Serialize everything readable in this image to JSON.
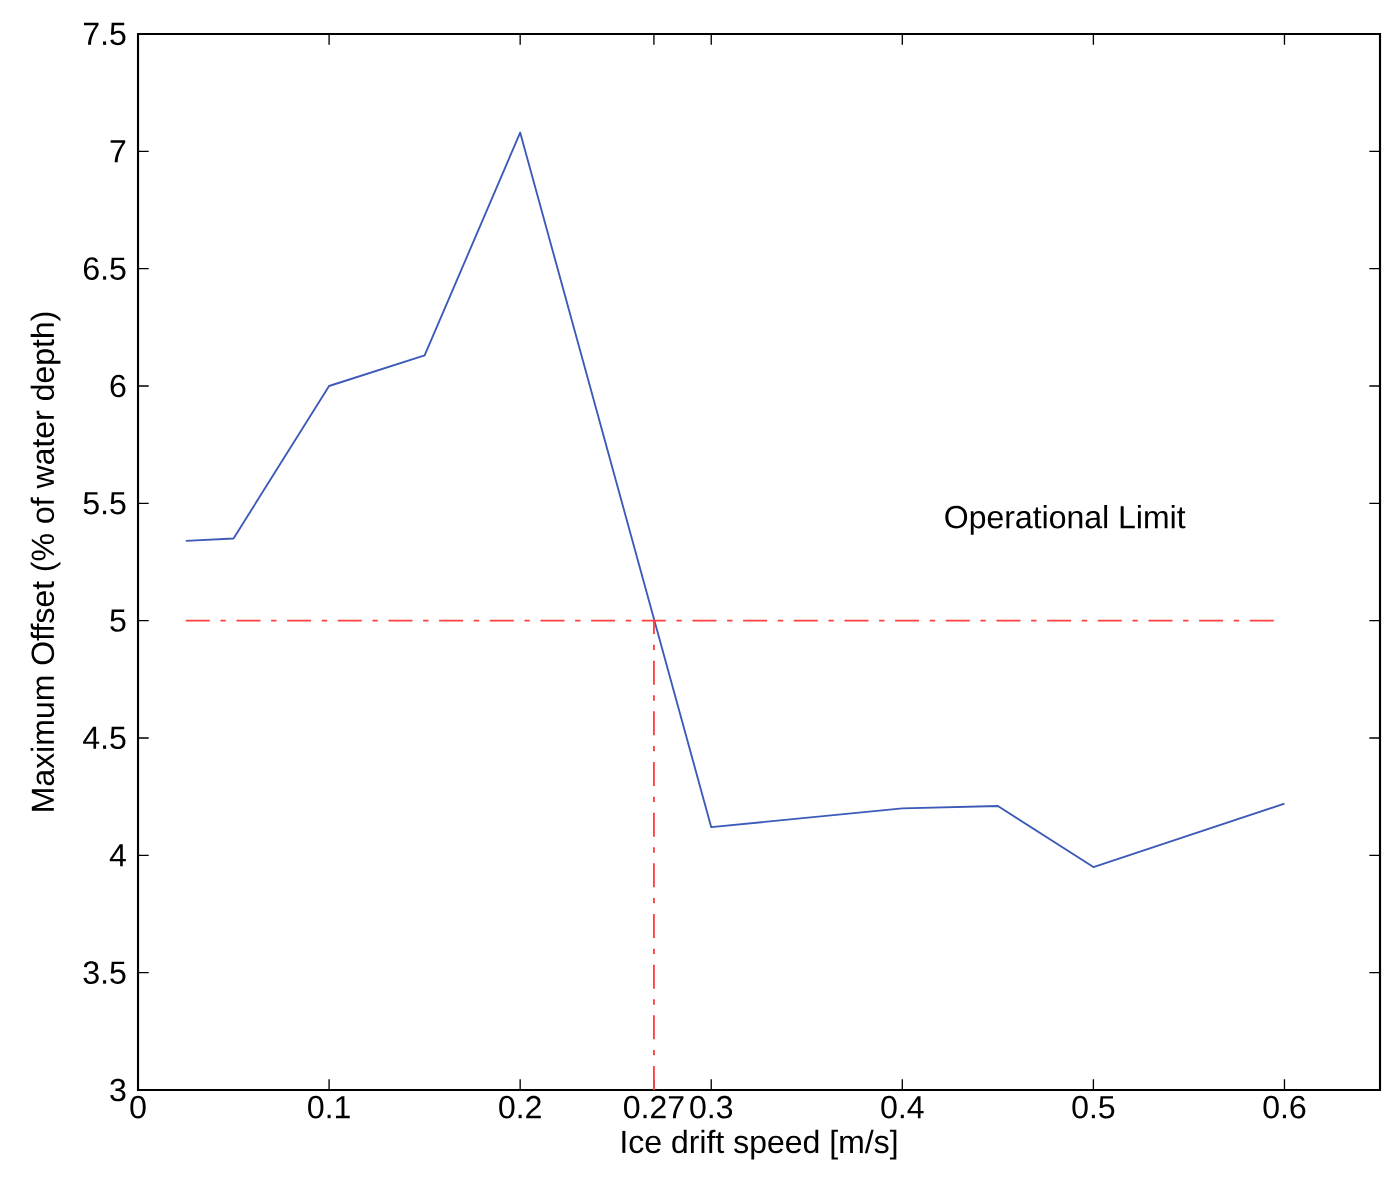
{
  "chart_data": {
    "type": "line",
    "xlabel": "Ice drift speed [m/s]",
    "ylabel": "Maximum Offset (% of water depth)",
    "x": [
      0.025,
      0.05,
      0.1,
      0.15,
      0.2,
      0.3,
      0.4,
      0.45,
      0.5,
      0.6
    ],
    "series": [
      {
        "color": "#3c5ab8",
        "values": [
          5.34,
          5.35,
          6.0,
          6.13,
          7.08,
          4.12,
          4.2,
          4.21,
          3.95,
          4.22
        ]
      }
    ],
    "xlim": [
      0,
      0.65
    ],
    "ylim": [
      3,
      7.5
    ],
    "xticks": [
      0,
      0.1,
      0.2,
      0.27,
      0.3,
      0.4,
      0.5,
      0.6
    ],
    "yticks": [
      3,
      3.5,
      4,
      4.5,
      5,
      5.5,
      6,
      6.5,
      7,
      7.5
    ],
    "ref_lines": [
      {
        "axis": "y",
        "value": 5,
        "label": "Operational Limit",
        "color": "#ff4040",
        "line_style": "dashdot"
      },
      {
        "axis": "x",
        "value": 0.27,
        "color": "#ff4040",
        "line_style": "dashdot"
      }
    ],
    "grid": false,
    "line_style": "solid"
  }
}
